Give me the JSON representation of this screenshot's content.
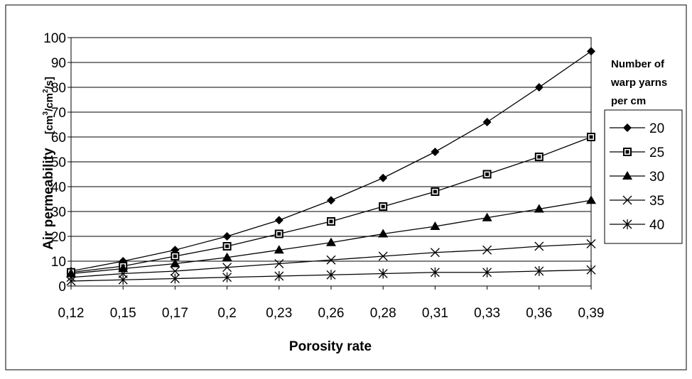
{
  "chart_data": {
    "type": "line",
    "x": [
      "0,12",
      "0,15",
      "0,17",
      "0,2",
      "0,23",
      "0,26",
      "0,28",
      "0,31",
      "0,33",
      "0,36",
      "0,39"
    ],
    "series": [
      {
        "name": "20",
        "marker": "diamond",
        "values": [
          6,
          10,
          14.5,
          20,
          26.5,
          34.5,
          43.5,
          54,
          66,
          80,
          94.5
        ]
      },
      {
        "name": "25",
        "marker": "square",
        "values": [
          5.5,
          8,
          12,
          16,
          21,
          26,
          32,
          38,
          45,
          52,
          60
        ]
      },
      {
        "name": "30",
        "marker": "triangle",
        "values": [
          5,
          7,
          9,
          11.5,
          14.5,
          17.5,
          21,
          24,
          27.5,
          31,
          34.5
        ]
      },
      {
        "name": "35",
        "marker": "x",
        "values": [
          3.5,
          5,
          6,
          7.5,
          9,
          10.5,
          12,
          13.5,
          14.5,
          16,
          17
        ]
      },
      {
        "name": "40",
        "marker": "asterisk",
        "values": [
          2,
          2.5,
          3,
          3.5,
          4,
          4.5,
          5,
          5.5,
          5.5,
          6,
          6.5
        ]
      }
    ],
    "xlabel": "Porosity rate",
    "ylabel": "Air permeability",
    "yunit": {
      "base": "[cm",
      "sup1": "3",
      "mid": "/cm",
      "sup2": "2",
      "tail": "/s]"
    },
    "ylim": [
      0,
      100
    ],
    "yticks": [
      0,
      10,
      20,
      30,
      40,
      50,
      60,
      70,
      80,
      90,
      100
    ],
    "grid": "horizontal",
    "legend": {
      "title_lines": [
        "Number of",
        "warp yarns",
        "per cm"
      ],
      "placement": "right"
    },
    "colors": {
      "line": "#000000",
      "grid": "#000000",
      "background": "#ffffff"
    }
  }
}
